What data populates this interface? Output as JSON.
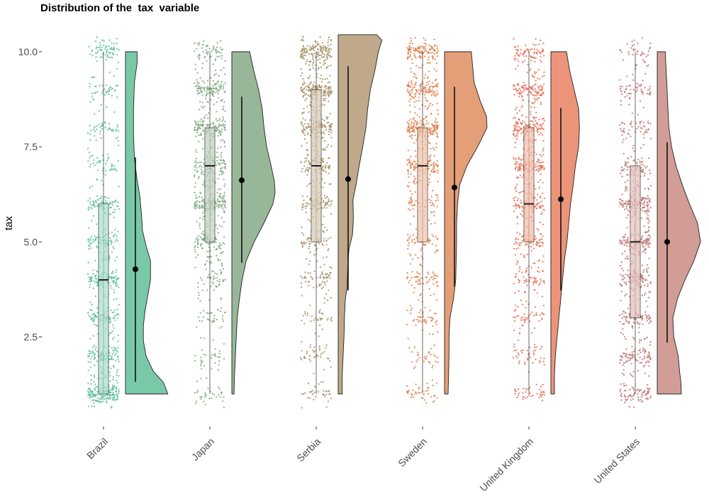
{
  "chart_data": {
    "type": "raincloud",
    "title": "Distribution of the  tax  variable",
    "ylabel": "tax",
    "xlabel": "",
    "ylim": [
      0.6,
      10.4
    ],
    "yticks": [
      2.5,
      5.0,
      7.5,
      10.0
    ],
    "ytick_labels": [
      "2.5",
      "5.0",
      "7.5",
      "10.0"
    ],
    "grid": false,
    "legend": "none",
    "categories": [
      "Brazil",
      "Japan",
      "Serbia",
      "Sweden",
      "United Kingdom",
      "United States"
    ],
    "colors": [
      "#5bbf96",
      "#7fa87f",
      "#a69064",
      "#e07f4d",
      "#e66e53",
      "#c07672"
    ],
    "violin_colors": [
      "#79c9a9",
      "#98b698",
      "#bfa98a",
      "#e49f79",
      "#ec9479",
      "#d29d97"
    ],
    "box_stats": [
      {
        "min": 1.0,
        "q1": 1.0,
        "median": 4.0,
        "q3": 6.0,
        "max": 10.0
      },
      {
        "min": 1.0,
        "q1": 5.0,
        "median": 7.0,
        "q3": 8.0,
        "max": 10.0
      },
      {
        "min": 1.0,
        "q1": 5.0,
        "median": 7.0,
        "q3": 9.0,
        "max": 10.0
      },
      {
        "min": 1.0,
        "q1": 5.0,
        "median": 7.0,
        "q3": 8.0,
        "max": 10.0
      },
      {
        "min": 1.0,
        "q1": 5.0,
        "median": 6.0,
        "q3": 8.0,
        "max": 10.0
      },
      {
        "min": 1.0,
        "q1": 3.0,
        "median": 5.0,
        "q3": 7.0,
        "max": 10.0
      }
    ],
    "mean": [
      4.28,
      6.62,
      6.65,
      6.43,
      6.12,
      5.0
    ],
    "sd_lower": [
      1.32,
      4.45,
      3.72,
      3.82,
      3.72,
      2.35
    ],
    "sd_upper": [
      7.22,
      8.82,
      9.62,
      9.08,
      8.52,
      7.62
    ],
    "density_profile": [
      [
        [
          1.0,
          0.95
        ],
        [
          1.3,
          0.85
        ],
        [
          1.6,
          0.62
        ],
        [
          2.0,
          0.46
        ],
        [
          2.4,
          0.4
        ],
        [
          2.8,
          0.4
        ],
        [
          3.2,
          0.44
        ],
        [
          3.6,
          0.5
        ],
        [
          4.0,
          0.56
        ],
        [
          4.5,
          0.56
        ],
        [
          4.9,
          0.46
        ],
        [
          5.3,
          0.38
        ],
        [
          5.7,
          0.36
        ],
        [
          6.2,
          0.32
        ],
        [
          6.7,
          0.25
        ],
        [
          7.2,
          0.2
        ],
        [
          7.8,
          0.18
        ],
        [
          8.5,
          0.18
        ],
        [
          9.2,
          0.2
        ],
        [
          9.7,
          0.26
        ],
        [
          10.0,
          0.26
        ]
      ],
      [
        [
          1.0,
          0.05
        ],
        [
          1.5,
          0.06
        ],
        [
          2.0,
          0.08
        ],
        [
          2.5,
          0.1
        ],
        [
          3.0,
          0.12
        ],
        [
          3.5,
          0.17
        ],
        [
          4.0,
          0.23
        ],
        [
          4.5,
          0.32
        ],
        [
          5.0,
          0.5
        ],
        [
          5.5,
          0.72
        ],
        [
          6.0,
          0.92
        ],
        [
          6.3,
          0.97
        ],
        [
          6.6,
          0.95
        ],
        [
          7.0,
          0.88
        ],
        [
          7.5,
          0.78
        ],
        [
          8.0,
          0.72
        ],
        [
          8.5,
          0.68
        ],
        [
          9.0,
          0.6
        ],
        [
          9.5,
          0.49
        ],
        [
          10.0,
          0.4
        ]
      ],
      [
        [
          1.0,
          0.09
        ],
        [
          1.5,
          0.09
        ],
        [
          2.0,
          0.11
        ],
        [
          2.5,
          0.13
        ],
        [
          3.0,
          0.14
        ],
        [
          3.5,
          0.16
        ],
        [
          3.8,
          0.2
        ],
        [
          4.2,
          0.21
        ],
        [
          4.8,
          0.24
        ],
        [
          5.2,
          0.32
        ],
        [
          5.6,
          0.34
        ],
        [
          6.1,
          0.33
        ],
        [
          6.5,
          0.4
        ],
        [
          7.0,
          0.47
        ],
        [
          7.5,
          0.55
        ],
        [
          8.0,
          0.62
        ],
        [
          8.5,
          0.66
        ],
        [
          9.0,
          0.72
        ],
        [
          9.5,
          0.82
        ],
        [
          10.0,
          0.9
        ],
        [
          10.3,
          0.98
        ],
        [
          10.45,
          0.86
        ]
      ],
      [
        [
          1.0,
          0.08
        ],
        [
          1.5,
          0.09
        ],
        [
          2.0,
          0.1
        ],
        [
          2.5,
          0.1
        ],
        [
          3.0,
          0.12
        ],
        [
          3.5,
          0.2
        ],
        [
          4.0,
          0.25
        ],
        [
          4.5,
          0.26
        ],
        [
          5.0,
          0.27
        ],
        [
          5.5,
          0.27
        ],
        [
          6.0,
          0.29
        ],
        [
          6.5,
          0.34
        ],
        [
          7.0,
          0.5
        ],
        [
          7.5,
          0.74
        ],
        [
          8.0,
          0.95
        ],
        [
          8.3,
          0.94
        ],
        [
          8.7,
          0.8
        ],
        [
          9.2,
          0.66
        ],
        [
          9.6,
          0.63
        ],
        [
          10.0,
          0.6
        ]
      ],
      [
        [
          1.0,
          0.08
        ],
        [
          1.5,
          0.08
        ],
        [
          2.0,
          0.1
        ],
        [
          2.5,
          0.14
        ],
        [
          3.0,
          0.18
        ],
        [
          3.5,
          0.22
        ],
        [
          4.0,
          0.26
        ],
        [
          4.5,
          0.3
        ],
        [
          5.0,
          0.36
        ],
        [
          5.5,
          0.4
        ],
        [
          6.0,
          0.44
        ],
        [
          6.5,
          0.5
        ],
        [
          7.0,
          0.55
        ],
        [
          7.5,
          0.62
        ],
        [
          8.0,
          0.64
        ],
        [
          8.5,
          0.62
        ],
        [
          9.0,
          0.52
        ],
        [
          9.5,
          0.42
        ],
        [
          10.0,
          0.35
        ]
      ],
      [
        [
          1.0,
          0.54
        ],
        [
          1.3,
          0.53
        ],
        [
          1.6,
          0.5
        ],
        [
          2.0,
          0.47
        ],
        [
          2.5,
          0.37
        ],
        [
          3.0,
          0.35
        ],
        [
          3.5,
          0.45
        ],
        [
          4.0,
          0.62
        ],
        [
          4.5,
          0.82
        ],
        [
          5.0,
          0.97
        ],
        [
          5.5,
          0.9
        ],
        [
          6.0,
          0.72
        ],
        [
          6.5,
          0.56
        ],
        [
          7.0,
          0.42
        ],
        [
          7.5,
          0.32
        ],
        [
          8.0,
          0.26
        ],
        [
          8.5,
          0.24
        ],
        [
          9.0,
          0.22
        ],
        [
          9.5,
          0.2
        ],
        [
          10.0,
          0.18
        ]
      ]
    ]
  }
}
